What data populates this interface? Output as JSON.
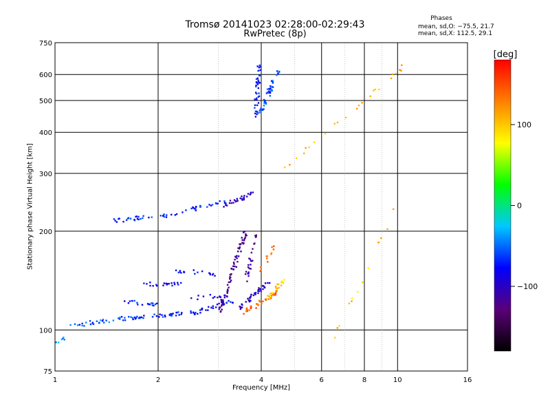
{
  "chart_data": {
    "type": "scatter",
    "title": "Tromsø 20141023 02:28:00-02:29:43",
    "subtitle": "RwPretec (8p)",
    "annotation": {
      "heading": "Phases",
      "line_o": "mean, sd,O: −75.5, 21.7",
      "line_x": "mean, sd,X: 112.5, 29.1"
    },
    "xlabel": "Frequency [MHz]",
    "ylabel": "Stationary phase Virtual Height [km]",
    "x_scale": "log",
    "y_scale": "log",
    "xlim": [
      1,
      16
    ],
    "ylim": [
      75,
      750
    ],
    "grid": true,
    "x_ticks": [
      1,
      2,
      4,
      6,
      8,
      10,
      16
    ],
    "x_tick_labels": [
      "1",
      "2",
      "4",
      "6",
      "8",
      "10",
      "16"
    ],
    "y_ticks": [
      75,
      100,
      200,
      300,
      400,
      500,
      600,
      750
    ],
    "y_tick_labels": [
      "75",
      "100",
      "200",
      "300",
      "400",
      "500",
      "600",
      "750"
    ],
    "colorbar": {
      "title": "[deg]",
      "range": [
        -180,
        180
      ],
      "ticks": [
        100,
        0,
        -100
      ],
      "tick_labels": [
        "100",
        "0",
        "−100"
      ],
      "colormap": [
        "#000000",
        "#5a0078",
        "#0000ff",
        "#00c8ff",
        "#00ff00",
        "#ffff00",
        "#ff8000",
        "#ff0000"
      ]
    },
    "series": [
      {
        "mode": "O",
        "traces": [
          {
            "f0": 1.0,
            "f1": 1.08,
            "h0": 92,
            "h1": 95,
            "phase": -40,
            "n": 6
          },
          {
            "f0": 1.08,
            "f1": 1.6,
            "h0": 103,
            "h1": 108,
            "phase": -55,
            "n": 25
          },
          {
            "f0": 1.5,
            "f1": 2.6,
            "h0": 108,
            "h1": 113,
            "phase": -70,
            "n": 45
          },
          {
            "f0": 2.5,
            "f1": 3.3,
            "h0": 112,
            "h1": 122,
            "phase": -80,
            "n": 30
          },
          {
            "f0": 1.6,
            "f1": 2.0,
            "h0": 122,
            "h1": 120,
            "phase": -70,
            "n": 18
          },
          {
            "f0": 1.8,
            "f1": 2.4,
            "h0": 138,
            "h1": 138,
            "phase": -85,
            "n": 20
          },
          {
            "f0": 2.2,
            "f1": 2.9,
            "h0": 152,
            "h1": 148,
            "phase": -80,
            "n": 18
          },
          {
            "f0": 2.5,
            "f1": 3.2,
            "h0": 125,
            "h1": 128,
            "phase": -90,
            "n": 15
          },
          {
            "f0": 1.5,
            "f1": 2.0,
            "h0": 215,
            "h1": 222,
            "phase": -65,
            "n": 22
          },
          {
            "f0": 2.0,
            "f1": 2.6,
            "h0": 220,
            "h1": 235,
            "phase": -70,
            "n": 18
          },
          {
            "f0": 2.6,
            "f1": 3.1,
            "h0": 235,
            "h1": 248,
            "phase": -65,
            "n": 14
          },
          {
            "f0": 3.1,
            "f1": 3.8,
            "h0": 240,
            "h1": 260,
            "phase": -105,
            "n": 30
          },
          {
            "f0": 3.0,
            "f1": 3.6,
            "h0": 110,
            "h1": 200,
            "phase": -120,
            "n": 70
          },
          {
            "f0": 3.4,
            "f1": 4.2,
            "h0": 115,
            "h1": 140,
            "phase": -100,
            "n": 40
          },
          {
            "f0": 3.6,
            "f1": 3.9,
            "h0": 140,
            "h1": 200,
            "phase": -110,
            "n": 25
          },
          {
            "f0": 3.85,
            "f1": 3.95,
            "h0": 440,
            "h1": 640,
            "phase": -75,
            "n": 40
          },
          {
            "f0": 3.95,
            "f1": 4.5,
            "h0": 455,
            "h1": 620,
            "phase": -60,
            "n": 45
          }
        ]
      },
      {
        "mode": "X",
        "traces": [
          {
            "f0": 3.5,
            "f1": 4.5,
            "h0": 112,
            "h1": 130,
            "phase": 140,
            "n": 40
          },
          {
            "f0": 4.2,
            "f1": 4.7,
            "h0": 125,
            "h1": 145,
            "phase": 95,
            "n": 22
          },
          {
            "f0": 3.9,
            "f1": 4.4,
            "h0": 150,
            "h1": 180,
            "phase": 130,
            "n": 12
          },
          {
            "f0": 4.5,
            "f1": 10.5,
            "h0": 300,
            "h1": 640,
            "phase": 110,
            "n": 25
          },
          {
            "f0": 6.5,
            "f1": 10.0,
            "h0": 95,
            "h1": 240,
            "phase": 100,
            "n": 14
          }
        ]
      }
    ]
  }
}
